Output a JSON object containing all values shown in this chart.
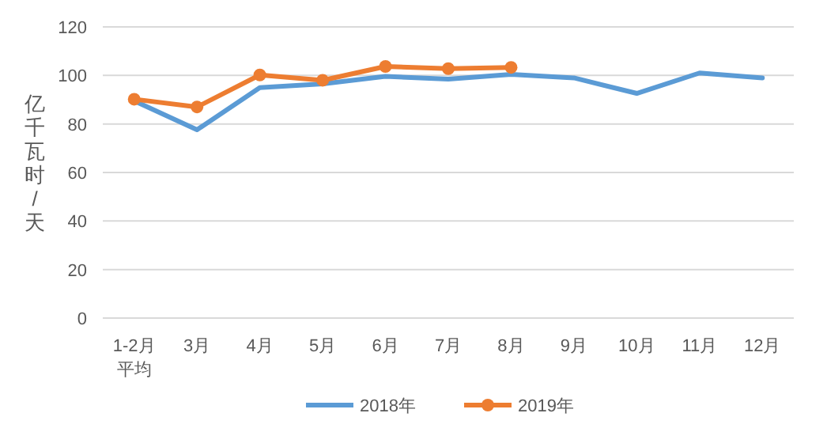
{
  "chart_data": {
    "type": "line",
    "ylabel": "亿千瓦时/天",
    "categories": [
      "1-2月平均",
      "3月",
      "4月",
      "5月",
      "6月",
      "7月",
      "8月",
      "9月",
      "10月",
      "11月",
      "12月"
    ],
    "series": [
      {
        "name": "2018年",
        "color": "#5b9bd5",
        "marker": "none",
        "values": [
          89.5,
          77.6,
          95,
          96.5,
          99.6,
          98.5,
          100.4,
          99,
          92.6,
          101,
          99
        ]
      },
      {
        "name": "2019年",
        "color": "#ed7d31",
        "marker": "circle",
        "values": [
          90.2,
          87,
          100.2,
          98,
          103.7,
          102.8,
          103.3,
          null,
          null,
          null,
          null
        ]
      }
    ],
    "ylim": [
      0,
      120
    ],
    "yticks": [
      0,
      20,
      40,
      60,
      80,
      100,
      120
    ],
    "grid": "y",
    "legend": "bottom",
    "line_style": "solid"
  }
}
